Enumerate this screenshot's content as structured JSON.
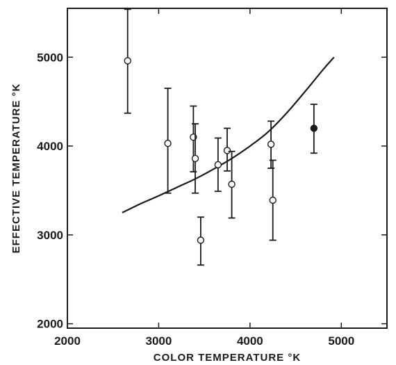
{
  "chart_data": {
    "type": "scatter",
    "title": "",
    "xlabel": "COLOR TEMPERATURE °K",
    "ylabel": "EFFECTIVE TEMPERATURE °K",
    "xlim": [
      2000,
      5500
    ],
    "ylim": [
      1950,
      5550
    ],
    "x_ticks": [
      2000,
      3000,
      4000,
      5000
    ],
    "y_ticks": [
      2000,
      3000,
      4000,
      5000
    ],
    "x_tick_labels": [
      "2000",
      "3000",
      "4000",
      "5000"
    ],
    "y_tick_labels": [
      "2000",
      "3000",
      "4000",
      "5000"
    ],
    "grid": false,
    "points": [
      {
        "x": 2660,
        "y": 4960,
        "y_low": 4370,
        "y_high": 5540,
        "filled": false
      },
      {
        "x": 3100,
        "y": 4030,
        "y_low": 3470,
        "y_high": 4650,
        "filled": false
      },
      {
        "x": 3380,
        "y": 4100,
        "y_low": 3710,
        "y_high": 4450,
        "filled": false
      },
      {
        "x": 3400,
        "y": 3860,
        "y_low": 3470,
        "y_high": 4250,
        "filled": false
      },
      {
        "x": 3460,
        "y": 2940,
        "y_low": 2660,
        "y_high": 3200,
        "filled": false
      },
      {
        "x": 3650,
        "y": 3790,
        "y_low": 3490,
        "y_high": 4090,
        "filled": false
      },
      {
        "x": 3750,
        "y": 3950,
        "y_low": 3720,
        "y_high": 4200,
        "filled": false
      },
      {
        "x": 3800,
        "y": 3570,
        "y_low": 3190,
        "y_high": 3940,
        "filled": false
      },
      {
        "x": 4230,
        "y": 4020,
        "y_low": 3750,
        "y_high": 4280,
        "filled": false
      },
      {
        "x": 4250,
        "y": 3390,
        "y_low": 2940,
        "y_high": 3840,
        "filled": false
      },
      {
        "x": 4700,
        "y": 4200,
        "y_low": 3920,
        "y_high": 4470,
        "filled": true
      }
    ],
    "curve": {
      "x": [
        2600,
        2800,
        3000,
        3200,
        3400,
        3600,
        3800,
        4000,
        4200,
        4400,
        4600,
        4800,
        4920
      ],
      "y": [
        3250,
        3350,
        3440,
        3535,
        3630,
        3740,
        3860,
        4000,
        4160,
        4370,
        4610,
        4860,
        5000
      ]
    }
  }
}
